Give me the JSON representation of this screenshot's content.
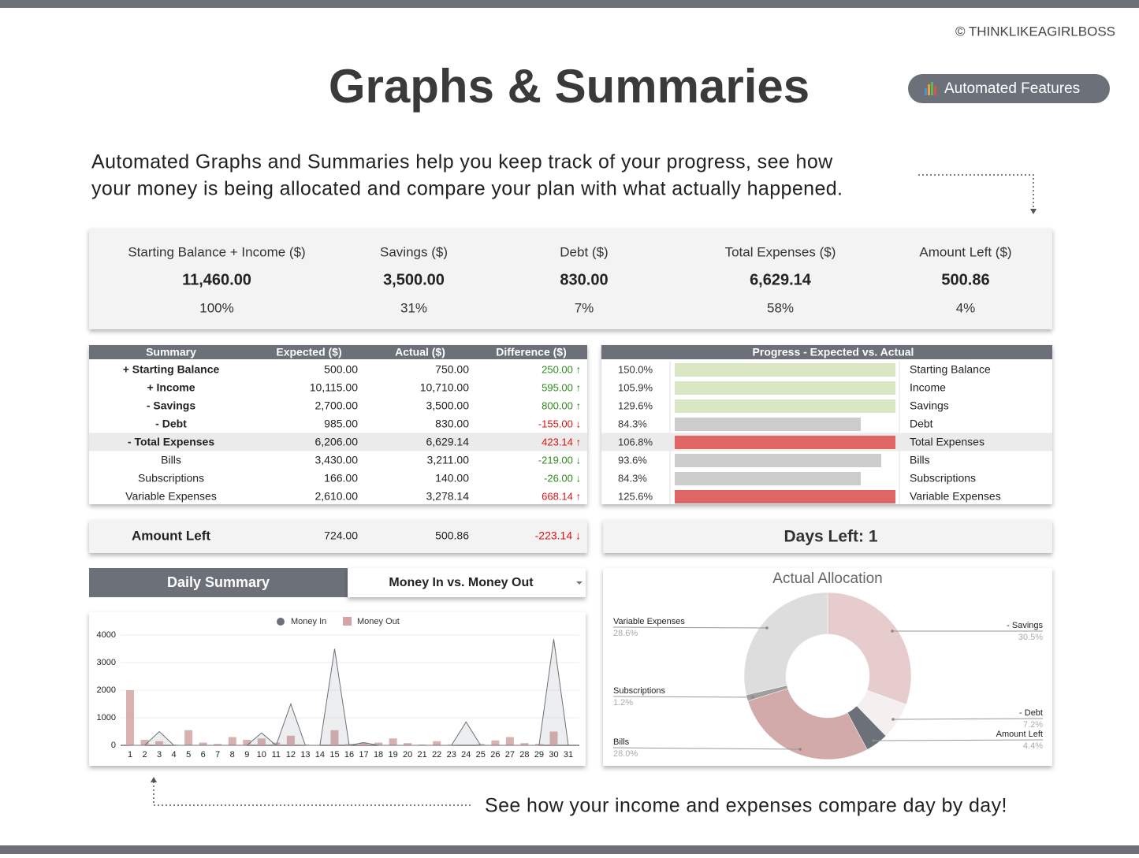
{
  "header": {
    "copyright": "© THINKLIKEAGIRLBOSS",
    "title": "Graphs & Summaries",
    "badge": "Automated Features"
  },
  "intro": {
    "lines": [
      "Automated Graphs and Summaries help you keep track of your progress, see how",
      "your money is being allocated and compare your plan with what actually happened."
    ]
  },
  "kpis": [
    {
      "label": "Starting Balance + Income ($)",
      "value": "11,460.00",
      "share": "100%"
    },
    {
      "label": "Savings ($)",
      "value": "3,500.00",
      "share": "31%"
    },
    {
      "label": "Debt ($)",
      "value": "830.00",
      "share": "7%"
    },
    {
      "label": "Total Expenses ($)",
      "value": "6,629.14",
      "share": "58%"
    },
    {
      "label": "Amount Left ($)",
      "value": "500.86",
      "share": "4%"
    }
  ],
  "summary_table": {
    "header": [
      "Summary",
      "Expected ($)",
      "Actual ($)",
      "Difference ($)"
    ],
    "rows": [
      {
        "cells": [
          "+ Starting Balance",
          "500.00",
          "750.00",
          "250.00 ↑"
        ],
        "bold": true,
        "shaded": false,
        "diff_color": "#2f8a1f"
      },
      {
        "cells": [
          "+ Income",
          "10,115.00",
          "10,710.00",
          "595.00 ↑"
        ],
        "bold": true,
        "shaded": false,
        "diff_color": "#2f8a1f"
      },
      {
        "cells": [
          "- Savings",
          "2,700.00",
          "3,500.00",
          "800.00 ↑"
        ],
        "bold": true,
        "shaded": false,
        "diff_color": "#2f8a1f"
      },
      {
        "cells": [
          "- Debt",
          "985.00",
          "830.00",
          "-155.00 ↓"
        ],
        "bold": true,
        "shaded": false,
        "diff_color": "#e01010"
      },
      {
        "cells": [
          "- Total Expenses",
          "6,206.00",
          "6,629.14",
          "423.14 ↑"
        ],
        "bold": true,
        "shaded": true,
        "diff_color": "#e01010"
      },
      {
        "cells": [
          "Bills",
          "3,430.00",
          "3,211.00",
          "-219.00 ↓"
        ],
        "bold": false,
        "shaded": false,
        "diff_color": "#2f8a1f"
      },
      {
        "cells": [
          "Subscriptions",
          "166.00",
          "140.00",
          "-26.00 ↓"
        ],
        "bold": false,
        "shaded": false,
        "diff_color": "#2f8a1f"
      },
      {
        "cells": [
          "Variable Expenses",
          "2,610.00",
          "3,278.14",
          "668.14 ↑"
        ],
        "bold": false,
        "shaded": false,
        "diff_color": "#e01010"
      }
    ]
  },
  "progress": {
    "title": "Progress - Expected vs. Actual",
    "xlim": [
      0,
      100
    ],
    "rows": [
      {
        "name": "Starting Balance",
        "value": 150.0,
        "label": "150.0%",
        "color": "#d9e6c4",
        "shaded": false
      },
      {
        "name": "Income",
        "value": 105.9,
        "label": "105.9%",
        "color": "#d9e6c4",
        "shaded": false
      },
      {
        "name": "Savings",
        "value": 129.6,
        "label": "129.6%",
        "color": "#d9e6c4",
        "shaded": false
      },
      {
        "name": "Debt",
        "value": 84.3,
        "label": "84.3%",
        "color": "#cccccc",
        "shaded": false
      },
      {
        "name": "Total Expenses",
        "value": 106.8,
        "label": "106.8%",
        "color": "#e06666",
        "shaded": true
      },
      {
        "name": "Bills",
        "value": 93.6,
        "label": "93.6%",
        "color": "#cccccc",
        "shaded": false
      },
      {
        "name": "Subscriptions",
        "value": 84.3,
        "label": "84.3%",
        "color": "#cccccc",
        "shaded": false
      },
      {
        "name": "Variable Expenses",
        "value": 125.6,
        "label": "125.6%",
        "color": "#e06666",
        "shaded": false
      }
    ]
  },
  "amount_left": {
    "label": "Amount Left",
    "expected": "724.00",
    "actual": "500.86",
    "difference": "-223.14 ↓",
    "diff_color": "#e01010"
  },
  "days_left": "Days Left: 1",
  "daily_summary": {
    "tab": "Daily Summary",
    "dropdown": "Money In vs. Money Out"
  },
  "chart_data": [
    {
      "type": "bar",
      "categories": [
        "1",
        "2",
        "3",
        "4",
        "5",
        "6",
        "7",
        "8",
        "9",
        "10",
        "11",
        "12",
        "13",
        "14",
        "15",
        "16",
        "17",
        "18",
        "19",
        "20",
        "21",
        "22",
        "23",
        "24",
        "25",
        "26",
        "27",
        "28",
        "29",
        "30",
        "31"
      ],
      "series": [
        {
          "name": "Money In",
          "type": "line",
          "color": "#6b7079",
          "values": [
            0,
            0,
            500,
            0,
            0,
            0,
            0,
            0,
            0,
            450,
            0,
            1500,
            0,
            0,
            3500,
            0,
            100,
            0,
            0,
            0,
            0,
            0,
            0,
            850,
            0,
            0,
            0,
            0,
            0,
            3850,
            0
          ]
        },
        {
          "name": "Money Out",
          "type": "bar",
          "color": "#d4a3a3",
          "values": [
            2000,
            200,
            150,
            30,
            550,
            100,
            50,
            300,
            200,
            250,
            100,
            350,
            30,
            0,
            550,
            50,
            100,
            100,
            250,
            80,
            30,
            150,
            30,
            0,
            50,
            180,
            300,
            80,
            50,
            500,
            0
          ]
        }
      ],
      "ylim": [
        0,
        4000
      ],
      "yticks": [
        0,
        1000,
        2000,
        3000,
        4000
      ],
      "grid": true,
      "legend": "top"
    },
    {
      "type": "pie",
      "title": "Actual Allocation",
      "categories": [
        "- Savings",
        "- Debt",
        "Amount Left",
        "Bills",
        "Subscriptions",
        "Variable Expenses"
      ],
      "values": [
        30.5,
        7.2,
        4.4,
        28.0,
        1.2,
        28.6
      ],
      "value_labels": [
        "30.5%",
        "7.2%",
        "4.4%",
        "28.0%",
        "1.2%",
        "28.6%"
      ],
      "colors": [
        "#e6cccc",
        "#f6efef",
        "#6b7079",
        "#d3aaaa",
        "#9e9e9e",
        "#dddddd"
      ],
      "donut": true
    }
  ],
  "footer": {
    "caption": "See how your income and expenses compare day by day!"
  }
}
